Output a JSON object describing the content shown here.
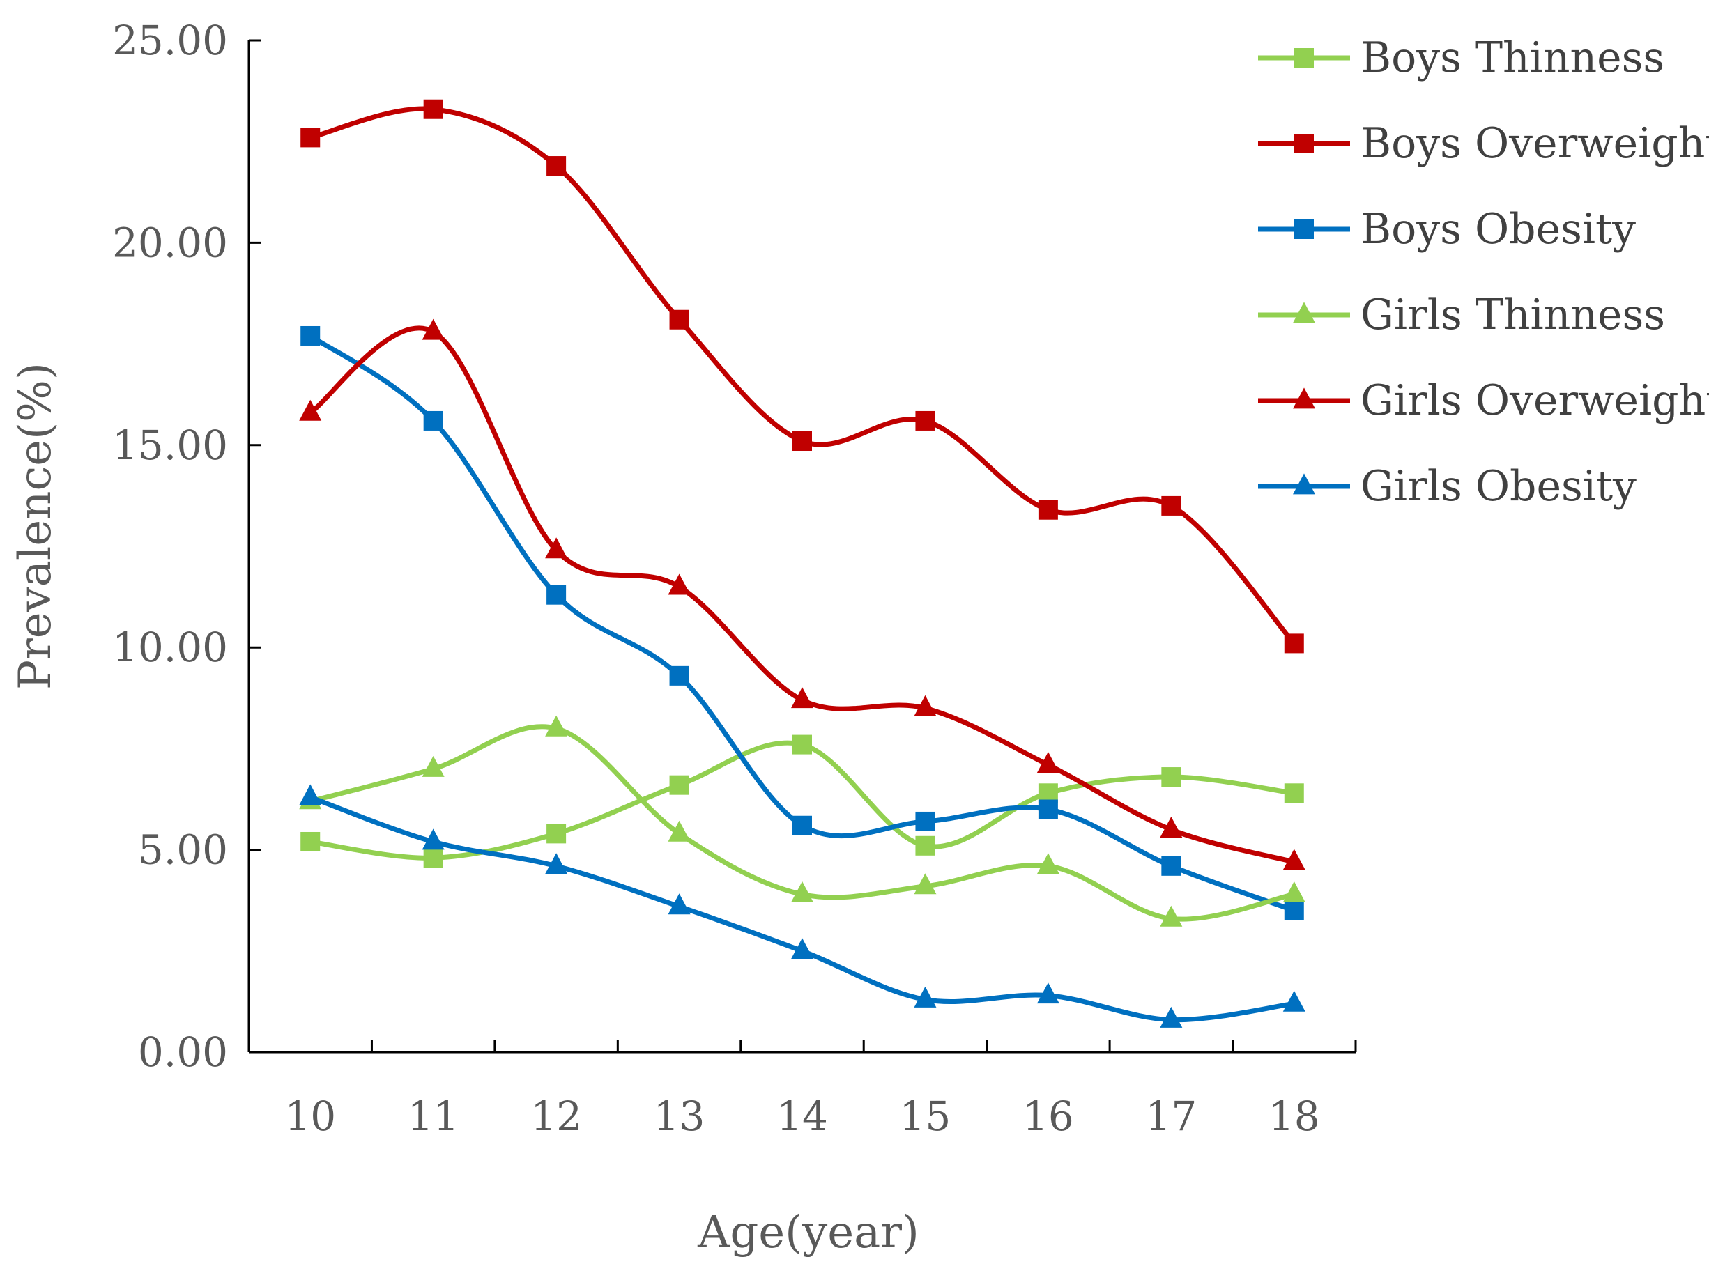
{
  "chart_data": {
    "type": "line",
    "title": "",
    "xlabel": "Age(year)",
    "ylabel": "Prevalence(%)",
    "categories": [
      "10",
      "11",
      "12",
      "13",
      "14",
      "15",
      "16",
      "17",
      "18"
    ],
    "ylim": [
      0,
      25
    ],
    "yticks": [
      "0.00",
      "5.00",
      "10.00",
      "15.00",
      "20.00",
      "25.00"
    ],
    "grid": false,
    "smooth": true,
    "legend_position": "top-right",
    "series": [
      {
        "name": "Boys Thinness",
        "marker": "square",
        "color": "#92d050",
        "values": [
          5.2,
          4.8,
          5.4,
          6.6,
          7.6,
          5.1,
          6.4,
          6.8,
          6.4
        ]
      },
      {
        "name": "Boys Overweight",
        "marker": "square",
        "color": "#c00000",
        "values": [
          22.6,
          23.3,
          21.9,
          18.1,
          15.1,
          15.6,
          13.4,
          13.5,
          10.1
        ]
      },
      {
        "name": "Boys Obesity",
        "marker": "square",
        "color": "#0070c0",
        "values": [
          17.7,
          15.6,
          11.3,
          9.3,
          5.6,
          5.7,
          6.0,
          4.6,
          3.5
        ]
      },
      {
        "name": "Girls Thinness",
        "marker": "triangle",
        "color": "#92d050",
        "values": [
          6.2,
          7.0,
          8.0,
          5.4,
          3.9,
          4.1,
          4.6,
          3.3,
          3.9
        ]
      },
      {
        "name": "Girls Overweight",
        "marker": "triangle",
        "color": "#c00000",
        "values": [
          15.8,
          17.8,
          12.4,
          11.5,
          8.7,
          8.5,
          7.1,
          5.5,
          4.7
        ]
      },
      {
        "name": "Girls Obesity",
        "marker": "triangle",
        "color": "#0070c0",
        "values": [
          6.3,
          5.2,
          4.6,
          3.6,
          2.5,
          1.3,
          1.4,
          0.8,
          1.2
        ]
      }
    ]
  }
}
